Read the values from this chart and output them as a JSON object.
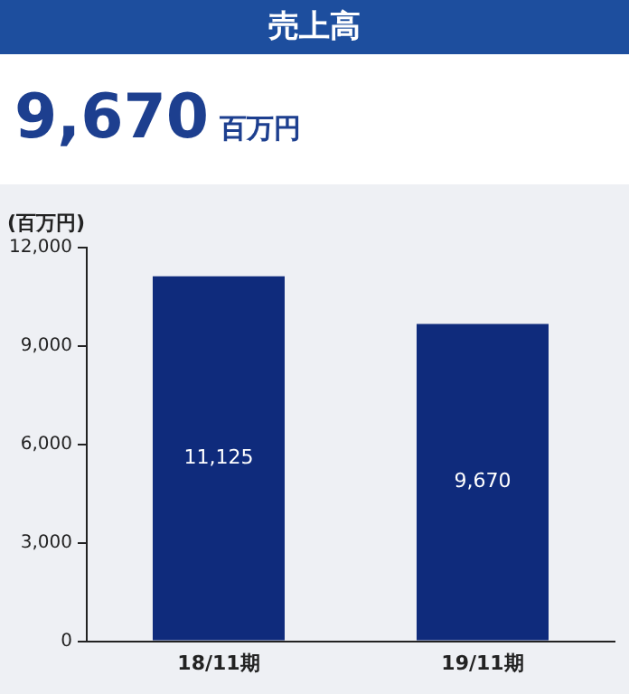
{
  "chart_data": {
    "type": "bar",
    "title": "売上高",
    "subtitle": "9,670 百万円",
    "ylabel": "(百万円)",
    "categories": [
      "18/11期",
      "19/11期"
    ],
    "values": [
      11125,
      9670
    ],
    "color": "#0f2b7c",
    "value_labels": [
      "11,125",
      "9,670"
    ],
    "ylim": [
      0,
      12000
    ],
    "yticks": [
      0,
      {
        "value": 3000,
        "label": "3,000"
      },
      {
        "value": 6000,
        "label": "6,000"
      },
      {
        "value": 9000,
        "label": "9,000"
      },
      {
        "value": 12000,
        "label": "12,000"
      }
    ],
    "grid": false,
    "legend": false
  }
}
